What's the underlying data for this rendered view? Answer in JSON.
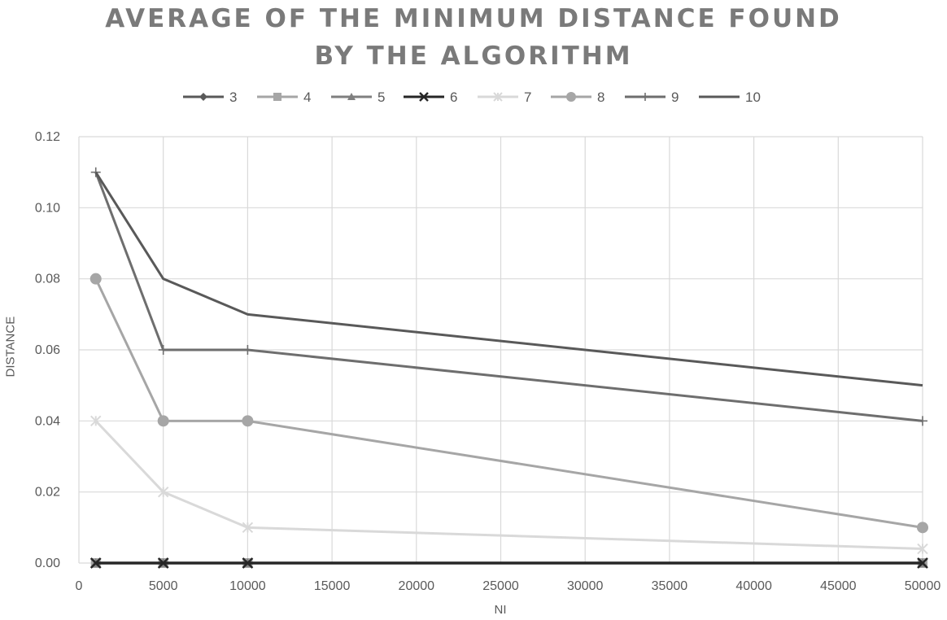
{
  "chart_data": {
    "type": "line",
    "title_lines": [
      "AVERAGE OF THE MINIMUM DISTANCE FOUND",
      "BY THE ALGORITHM"
    ],
    "xlabel": "NI",
    "ylabel": "DISTANCE",
    "xlim": [
      0,
      50000
    ],
    "ylim": [
      0,
      0.12
    ],
    "x_ticks": [
      "0",
      "5000",
      "10000",
      "15000",
      "20000",
      "25000",
      "30000",
      "35000",
      "40000",
      "45000",
      "50000"
    ],
    "y_ticks": [
      "0.00",
      "0.02",
      "0.04",
      "0.06",
      "0.08",
      "0.10",
      "0.12"
    ],
    "grid": true,
    "legend_position": "top",
    "x": [
      1000,
      5000,
      10000,
      50000
    ],
    "series": [
      {
        "name": "3",
        "values": [
          0,
          0,
          0,
          0
        ],
        "color": "#595959",
        "marker": "diamond"
      },
      {
        "name": "4",
        "values": [
          0,
          0,
          0,
          0
        ],
        "color": "#a6a6a6",
        "marker": "square"
      },
      {
        "name": "5",
        "values": [
          0,
          0,
          0,
          0
        ],
        "color": "#7f7f7f",
        "marker": "triangle"
      },
      {
        "name": "6",
        "values": [
          0,
          0,
          0,
          0
        ],
        "color": "#262626",
        "marker": "x"
      },
      {
        "name": "7",
        "values": [
          0.04,
          0.02,
          0.01,
          0.004
        ],
        "color": "#d9d9d9",
        "marker": "star"
      },
      {
        "name": "8",
        "values": [
          0.08,
          0.04,
          0.04,
          0.01
        ],
        "color": "#a6a6a6",
        "marker": "circle"
      },
      {
        "name": "9",
        "values": [
          0.11,
          0.06,
          0.06,
          0.04
        ],
        "color": "#6e6e6e",
        "marker": "plus"
      },
      {
        "name": "10",
        "values": [
          0.11,
          0.08,
          0.07,
          0.05
        ],
        "color": "#595959",
        "marker": "none"
      }
    ]
  }
}
